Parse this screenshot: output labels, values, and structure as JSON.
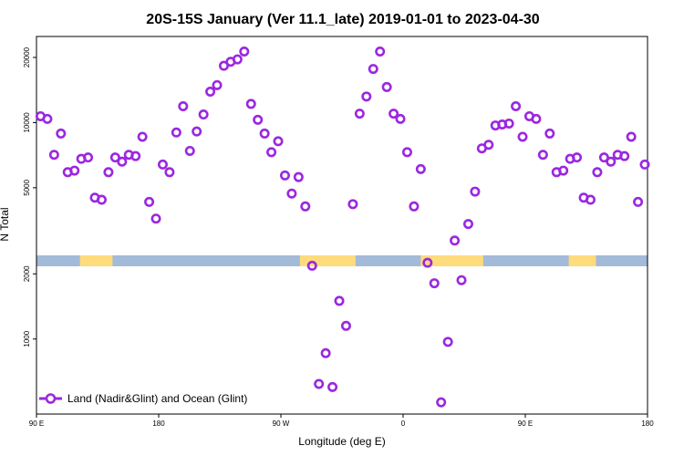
{
  "chart_data": {
    "type": "scatter",
    "title": "20S-15S January (Ver 11.1_late)   2019-01-01 to 2023-04-30",
    "xlabel": "Longitude (deg E)",
    "ylabel": "N Total",
    "x_ticks": [
      {
        "value": 90,
        "label": "90 E"
      },
      {
        "value": 180,
        "label": "180"
      },
      {
        "value": 270,
        "label": "90 W"
      },
      {
        "value": 360,
        "label": "0"
      },
      {
        "value": 450,
        "label": "90 E"
      },
      {
        "value": 540,
        "label": "180"
      }
    ],
    "y_scale": "log",
    "y_ticks": [
      1000,
      2000,
      5000,
      10000,
      20000
    ],
    "xlim": [
      90,
      540
    ],
    "ylim": [
      450,
      25000
    ],
    "series": [
      {
        "name": "Land (Nadir&Glint) and Ocean (Glint)",
        "color": "#9b27e0",
        "x": [
          93,
          98,
          103,
          108,
          113,
          118,
          123,
          128,
          133,
          138,
          143,
          148,
          153,
          158,
          163,
          168,
          173,
          178,
          183,
          188,
          193,
          198,
          203,
          208,
          213,
          218,
          223,
          228,
          233,
          238,
          243,
          248,
          253,
          258,
          263,
          268,
          273,
          278,
          283,
          288,
          293,
          298,
          303,
          308,
          313,
          318,
          323,
          328,
          333,
          338,
          343,
          348,
          353,
          358,
          363,
          368,
          373,
          378,
          383,
          388,
          393,
          398,
          403,
          408,
          413,
          418,
          423,
          428,
          433,
          438,
          443,
          448,
          453,
          458,
          463,
          468,
          473,
          478,
          483,
          488,
          493,
          498,
          503,
          508,
          513,
          518,
          523,
          528,
          533,
          538
        ],
        "y": [
          10700,
          10400,
          7100,
          8900,
          5900,
          6000,
          6800,
          6900,
          4500,
          4400,
          5900,
          6900,
          6600,
          7100,
          7000,
          8600,
          4300,
          3600,
          6400,
          5900,
          9000,
          11900,
          7400,
          9100,
          10900,
          13900,
          14900,
          18300,
          19100,
          19600,
          21300,
          12200,
          10300,
          8900,
          7300,
          8200,
          5700,
          4700,
          5600,
          4100,
          2180,
          620,
          860,
          600,
          1500,
          1150,
          4200,
          11000,
          13200,
          17700,
          21300,
          14600,
          11000,
          10400,
          7300,
          4100,
          6100,
          2250,
          1810,
          510,
          970,
          2850,
          1870,
          3400,
          4800,
          7600,
          7900,
          9700,
          9800,
          9900,
          11900,
          8600,
          10700,
          10400,
          7100,
          8900,
          5900,
          6000,
          6800,
          6900,
          4500,
          4400,
          5900,
          6900,
          6600,
          7100,
          7000,
          8600,
          4300,
          6400
        ]
      }
    ],
    "legend": {
      "position": "bottom-left",
      "entry": "Land (Nadir&Glint) and Ocean (Glint)"
    },
    "surface_strip": {
      "ocean_color": "#a3bad8",
      "land_color": "#fedb7b",
      "land_segments": [
        [
          122,
          146
        ],
        [
          284,
          325
        ],
        [
          373,
          419
        ],
        [
          482,
          502
        ]
      ]
    },
    "grid": false
  }
}
